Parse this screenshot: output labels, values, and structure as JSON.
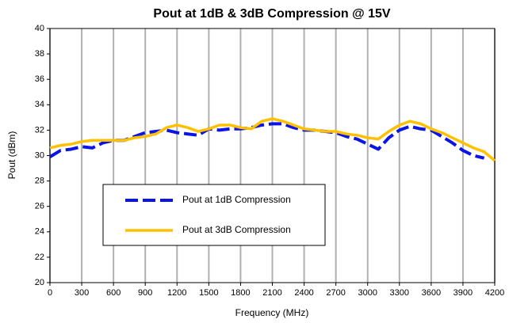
{
  "chart_data": {
    "type": "line",
    "title": "Pout at 1dB & 3dB Compression @ 15V",
    "xlabel": "Frequency (MHz)",
    "ylabel": "Pout (dBm)",
    "x": [
      0,
      100,
      200,
      300,
      400,
      500,
      600,
      700,
      800,
      900,
      1000,
      1100,
      1200,
      1300,
      1400,
      1500,
      1600,
      1700,
      1800,
      1900,
      2000,
      2100,
      2200,
      2300,
      2400,
      2500,
      2600,
      2700,
      2800,
      2900,
      3000,
      3100,
      3200,
      3300,
      3400,
      3500,
      3600,
      3700,
      3800,
      3900,
      4000,
      4100,
      4200
    ],
    "series": [
      {
        "name": "Pout at 1dB Compression",
        "color": "#0a14e6",
        "dashed": true,
        "values": [
          29.9,
          30.4,
          30.5,
          30.7,
          30.6,
          31.0,
          31.2,
          31.2,
          31.5,
          31.8,
          31.9,
          32.0,
          31.8,
          31.7,
          31.6,
          32.1,
          32.0,
          32.1,
          32.1,
          32.2,
          32.4,
          32.5,
          32.5,
          32.2,
          32.0,
          32.0,
          31.9,
          31.8,
          31.5,
          31.3,
          30.9,
          30.5,
          31.4,
          32.0,
          32.3,
          32.1,
          32.0,
          31.5,
          31.0,
          30.4,
          30.0,
          29.8,
          null
        ]
      },
      {
        "name": "Pout at 3dB Compression",
        "color": "#ffc000",
        "dashed": false,
        "values": [
          30.6,
          30.8,
          30.9,
          31.1,
          31.2,
          31.2,
          31.2,
          31.2,
          31.4,
          31.5,
          31.7,
          32.2,
          32.4,
          32.2,
          31.9,
          32.1,
          32.4,
          32.4,
          32.2,
          32.1,
          32.7,
          32.9,
          32.7,
          32.4,
          32.1,
          32.0,
          31.9,
          31.9,
          31.7,
          31.6,
          31.4,
          31.3,
          31.9,
          32.4,
          32.7,
          32.5,
          32.1,
          31.8,
          31.4,
          31.0,
          30.6,
          30.3,
          29.6
        ]
      }
    ],
    "xlim": [
      0,
      4200
    ],
    "xticks": [
      0,
      300,
      600,
      900,
      1200,
      1500,
      1800,
      2100,
      2400,
      2700,
      3000,
      3300,
      3600,
      3900,
      4200
    ],
    "ylim": [
      20,
      40
    ],
    "yticks": [
      20,
      22,
      24,
      26,
      28,
      30,
      32,
      34,
      36,
      38,
      40
    ],
    "grid": "x"
  }
}
